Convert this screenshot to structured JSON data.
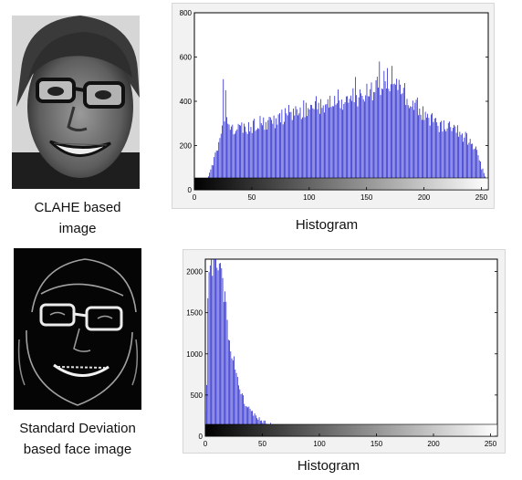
{
  "rows": [
    {
      "photo_icon": "clahe-face-photo",
      "caption": [
        "CLAHE based",
        "image"
      ],
      "histogram_title": "Histogram"
    },
    {
      "photo_icon": "std-dev-face-photo",
      "caption": [
        "Standard Deviation",
        "based face image"
      ],
      "histogram_title": "Histogram"
    }
  ],
  "chart_data": [
    {
      "type": "bar",
      "title": "",
      "xlabel": "",
      "ylabel": "",
      "xlim": [
        0,
        255
      ],
      "ylim": [
        0,
        800
      ],
      "x_ticks": [
        0,
        50,
        100,
        150,
        200,
        250
      ],
      "y_ticks": [
        0,
        200,
        400,
        600,
        800
      ],
      "bar_color": "#1a1acc",
      "colorbar": "grayscale 0-255",
      "profile": [
        [
          0,
          5
        ],
        [
          4,
          20
        ],
        [
          8,
          40
        ],
        [
          12,
          60
        ],
        [
          16,
          120
        ],
        [
          20,
          200
        ],
        [
          24,
          300
        ],
        [
          28,
          310
        ],
        [
          32,
          270
        ],
        [
          40,
          275
        ],
        [
          50,
          285
        ],
        [
          60,
          305
        ],
        [
          70,
          315
        ],
        [
          80,
          340
        ],
        [
          90,
          355
        ],
        [
          100,
          370
        ],
        [
          110,
          385
        ],
        [
          120,
          400
        ],
        [
          130,
          410
        ],
        [
          140,
          420
        ],
        [
          150,
          440
        ],
        [
          155,
          455
        ],
        [
          160,
          470
        ],
        [
          165,
          480
        ],
        [
          170,
          490
        ],
        [
          175,
          480
        ],
        [
          180,
          455
        ],
        [
          185,
          430
        ],
        [
          190,
          395
        ],
        [
          200,
          345
        ],
        [
          210,
          300
        ],
        [
          220,
          280
        ],
        [
          230,
          260
        ],
        [
          240,
          220
        ],
        [
          245,
          180
        ],
        [
          250,
          100
        ],
        [
          255,
          40
        ]
      ],
      "spikes": [
        [
          25,
          500
        ],
        [
          27,
          450
        ],
        [
          140,
          510
        ],
        [
          161,
          580
        ],
        [
          168,
          550
        ],
        [
          172,
          560
        ]
      ]
    },
    {
      "type": "bar",
      "title": "",
      "xlabel": "",
      "ylabel": "",
      "xlim": [
        0,
        255
      ],
      "ylim": [
        0,
        2150
      ],
      "x_ticks": [
        0,
        50,
        100,
        150,
        200,
        250
      ],
      "y_ticks": [
        0,
        500,
        1000,
        1500,
        2000
      ],
      "bar_color": "#1a1acc",
      "colorbar": "grayscale 0-255",
      "profile": [
        [
          0,
          300
        ],
        [
          1,
          600
        ],
        [
          2,
          1800
        ],
        [
          3,
          2150
        ],
        [
          4,
          2150
        ],
        [
          10,
          2150
        ],
        [
          14,
          2000
        ],
        [
          18,
          1550
        ],
        [
          22,
          1100
        ],
        [
          26,
          800
        ],
        [
          30,
          560
        ],
        [
          35,
          390
        ],
        [
          40,
          290
        ],
        [
          50,
          180
        ],
        [
          60,
          130
        ],
        [
          70,
          90
        ],
        [
          80,
          65
        ],
        [
          90,
          50
        ],
        [
          100,
          38
        ],
        [
          120,
          25
        ],
        [
          140,
          16
        ],
        [
          160,
          8
        ],
        [
          175,
          3
        ],
        [
          190,
          1
        ],
        [
          255,
          0
        ]
      ],
      "spikes": [
        [
          9,
          2150
        ],
        [
          15,
          1920
        ]
      ]
    }
  ]
}
